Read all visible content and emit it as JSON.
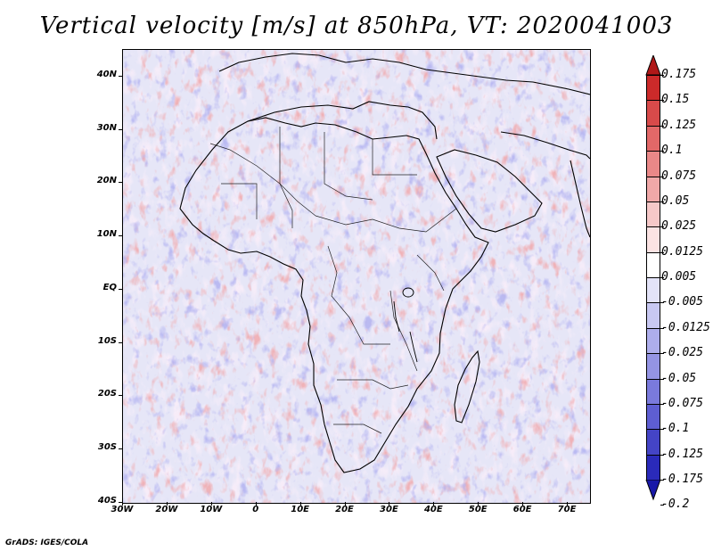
{
  "title": "Vertical velocity [m/s] at 850hPa, VT: 2020041003",
  "credit": "GrADS: IGES/COLA",
  "map": {
    "lon_range": [
      -30,
      75
    ],
    "lat_range": [
      -40,
      45
    ],
    "y_ticks": [
      {
        "label": "40N",
        "lat": 40
      },
      {
        "label": "30N",
        "lat": 30
      },
      {
        "label": "20N",
        "lat": 20
      },
      {
        "label": "10N",
        "lat": 10
      },
      {
        "label": "EQ",
        "lat": 0
      },
      {
        "label": "10S",
        "lat": -10
      },
      {
        "label": "20S",
        "lat": -20
      },
      {
        "label": "30S",
        "lat": -30
      },
      {
        "label": "40S",
        "lat": -40
      }
    ],
    "x_ticks": [
      {
        "label": "30W",
        "lon": -30
      },
      {
        "label": "20W",
        "lon": -20
      },
      {
        "label": "10W",
        "lon": -10
      },
      {
        "label": "0",
        "lon": 0
      },
      {
        "label": "10E",
        "lon": 10
      },
      {
        "label": "20E",
        "lon": 20
      },
      {
        "label": "30E",
        "lon": 30
      },
      {
        "label": "40E",
        "lon": 40
      },
      {
        "label": "50E",
        "lon": 50
      },
      {
        "label": "60E",
        "lon": 60
      },
      {
        "label": "70E",
        "lon": 70
      }
    ]
  },
  "colorbar": {
    "colors": [
      "#b01818",
      "#cc2a2a",
      "#d84a4a",
      "#e26868",
      "#ea8888",
      "#f0a8a8",
      "#f6c8c8",
      "#fbe3e3",
      "#ffffff",
      "#e3e3f8",
      "#c8c8f2",
      "#aeaeec",
      "#9494e4",
      "#7a7adc",
      "#5e5ed2",
      "#4444c6",
      "#2a2aba",
      "#1818a8"
    ],
    "labels": [
      "0.175",
      "0.15",
      "0.125",
      "0.1",
      "0.075",
      "0.05",
      "0.025",
      "0.0125",
      "0.005",
      "-0.005",
      "-0.0125",
      "-0.025",
      "-0.05",
      "-0.075",
      "-0.1",
      "-0.125",
      "-0.175",
      "-0.2"
    ]
  }
}
